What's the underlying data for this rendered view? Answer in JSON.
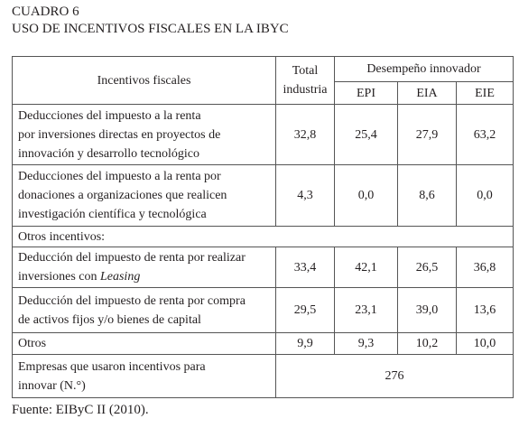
{
  "header": {
    "label": "CUADRO 6",
    "title": "USO DE INCENTIVOS FISCALES EN LA IBYC"
  },
  "table": {
    "columns": {
      "label": "Incentivos fiscales",
      "total": [
        "Total",
        "industria"
      ],
      "group": "Desempeño innovador",
      "sub": [
        "EPI",
        "EIA",
        "EIE"
      ]
    },
    "rows": [
      {
        "label": [
          "Deducciones del impuesto a la renta",
          "por inversiones directas en proyectos de",
          "innovación y desarrollo tecnológico"
        ],
        "values": [
          "32,8",
          "25,4",
          "27,9",
          "63,2"
        ]
      },
      {
        "label": [
          "Deducciones del impuesto a la renta por",
          "donaciones a organizaciones que realicen",
          "investigación científica y tecnológica"
        ],
        "values": [
          "4,3",
          "0,0",
          "8,6",
          "0,0"
        ]
      },
      {
        "section": "Otros incentivos:"
      },
      {
        "label": [
          "Deducción del impuesto de renta por realizar",
          "inversiones con"
        ],
        "label_italic": "Leasing",
        "values": [
          "33,4",
          "42,1",
          "26,5",
          "36,8"
        ]
      },
      {
        "label": [
          "Deducción del impuesto de renta por compra",
          "de activos fijos y/o bienes de capital"
        ],
        "values": [
          "29,5",
          "23,1",
          "39,0",
          "13,6"
        ]
      },
      {
        "label": [
          "Otros"
        ],
        "values": [
          "9,9",
          "9,3",
          "10,2",
          "10,0"
        ]
      },
      {
        "label": [
          "Empresas que usaron incentivos para",
          "innovar (N.°)"
        ],
        "total": "276"
      }
    ]
  },
  "footer": {
    "source": "Fuente: EIByC II (2010)."
  }
}
